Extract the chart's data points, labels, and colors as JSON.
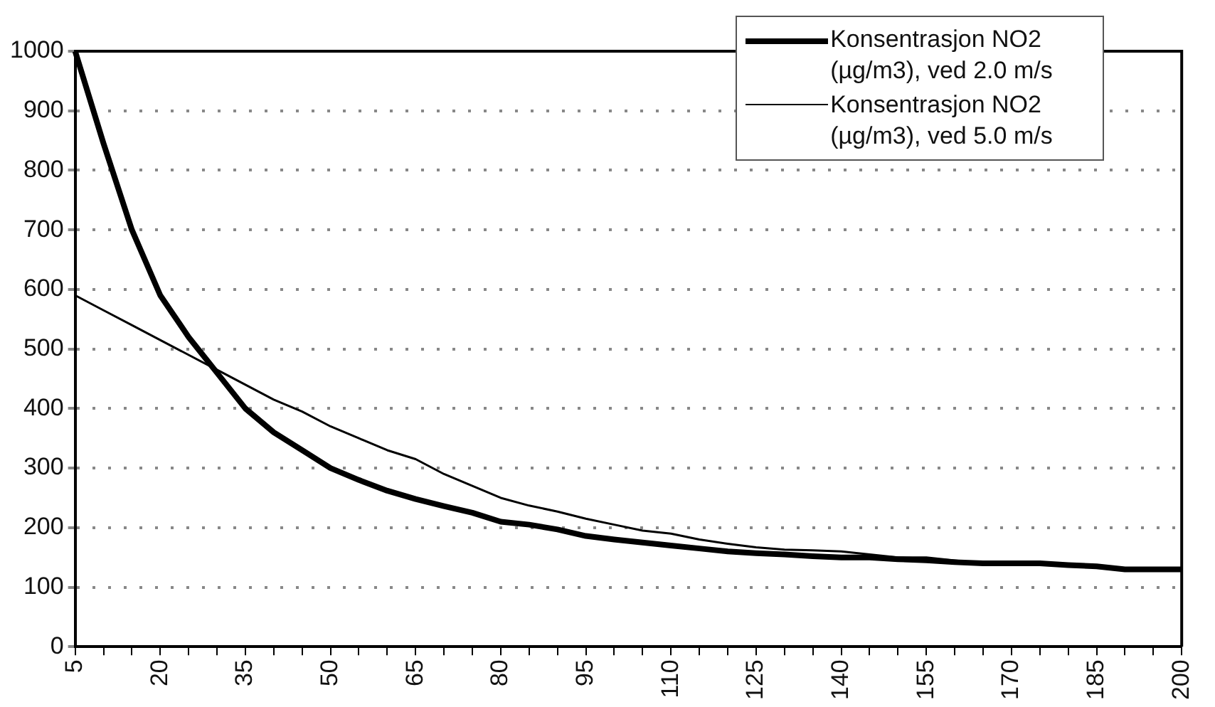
{
  "chart_data": {
    "type": "line",
    "categories": [
      "5",
      null,
      null,
      "20",
      null,
      null,
      "35",
      null,
      null,
      "50",
      null,
      null,
      "65",
      null,
      null,
      "80",
      null,
      null,
      "95",
      null,
      null,
      "110",
      null,
      null,
      "125",
      null,
      null,
      "140",
      null,
      null,
      "155",
      null,
      null,
      "170",
      null,
      null,
      "185",
      null,
      null,
      "200"
    ],
    "series": [
      {
        "name": "Konsentrasjon NO2 (µg/m3), ved 2.0 m/s",
        "color": "#000000",
        "values": [
          1000,
          845,
          700,
          590,
          520,
          460,
          400,
          360,
          330,
          300,
          280,
          262,
          248,
          236,
          225,
          210,
          205,
          197,
          186,
          180,
          175,
          170,
          165,
          160,
          157,
          155,
          152,
          150,
          150,
          147,
          145,
          142,
          140,
          140,
          140,
          137,
          135,
          130,
          130,
          130
        ]
      },
      {
        "name": "Konsentrasjon NO2 (µg/m3), ved 5.0 m/s",
        "color": "#000000",
        "values": [
          590,
          565,
          540,
          515,
          490,
          465,
          440,
          415,
          395,
          370,
          350,
          330,
          315,
          290,
          270,
          250,
          237,
          227,
          215,
          205,
          195,
          190,
          180,
          173,
          167,
          163,
          162,
          160,
          155,
          150,
          150,
          145,
          140,
          140,
          140,
          135,
          135,
          132,
          130,
          130
        ]
      }
    ],
    "ylim": [
      0,
      1000
    ],
    "yticks": [
      0,
      100,
      200,
      300,
      400,
      500,
      600,
      700,
      800,
      900,
      1000
    ],
    "grid": "y",
    "legend": "top right",
    "marker": "none",
    "line_style": "solid"
  }
}
